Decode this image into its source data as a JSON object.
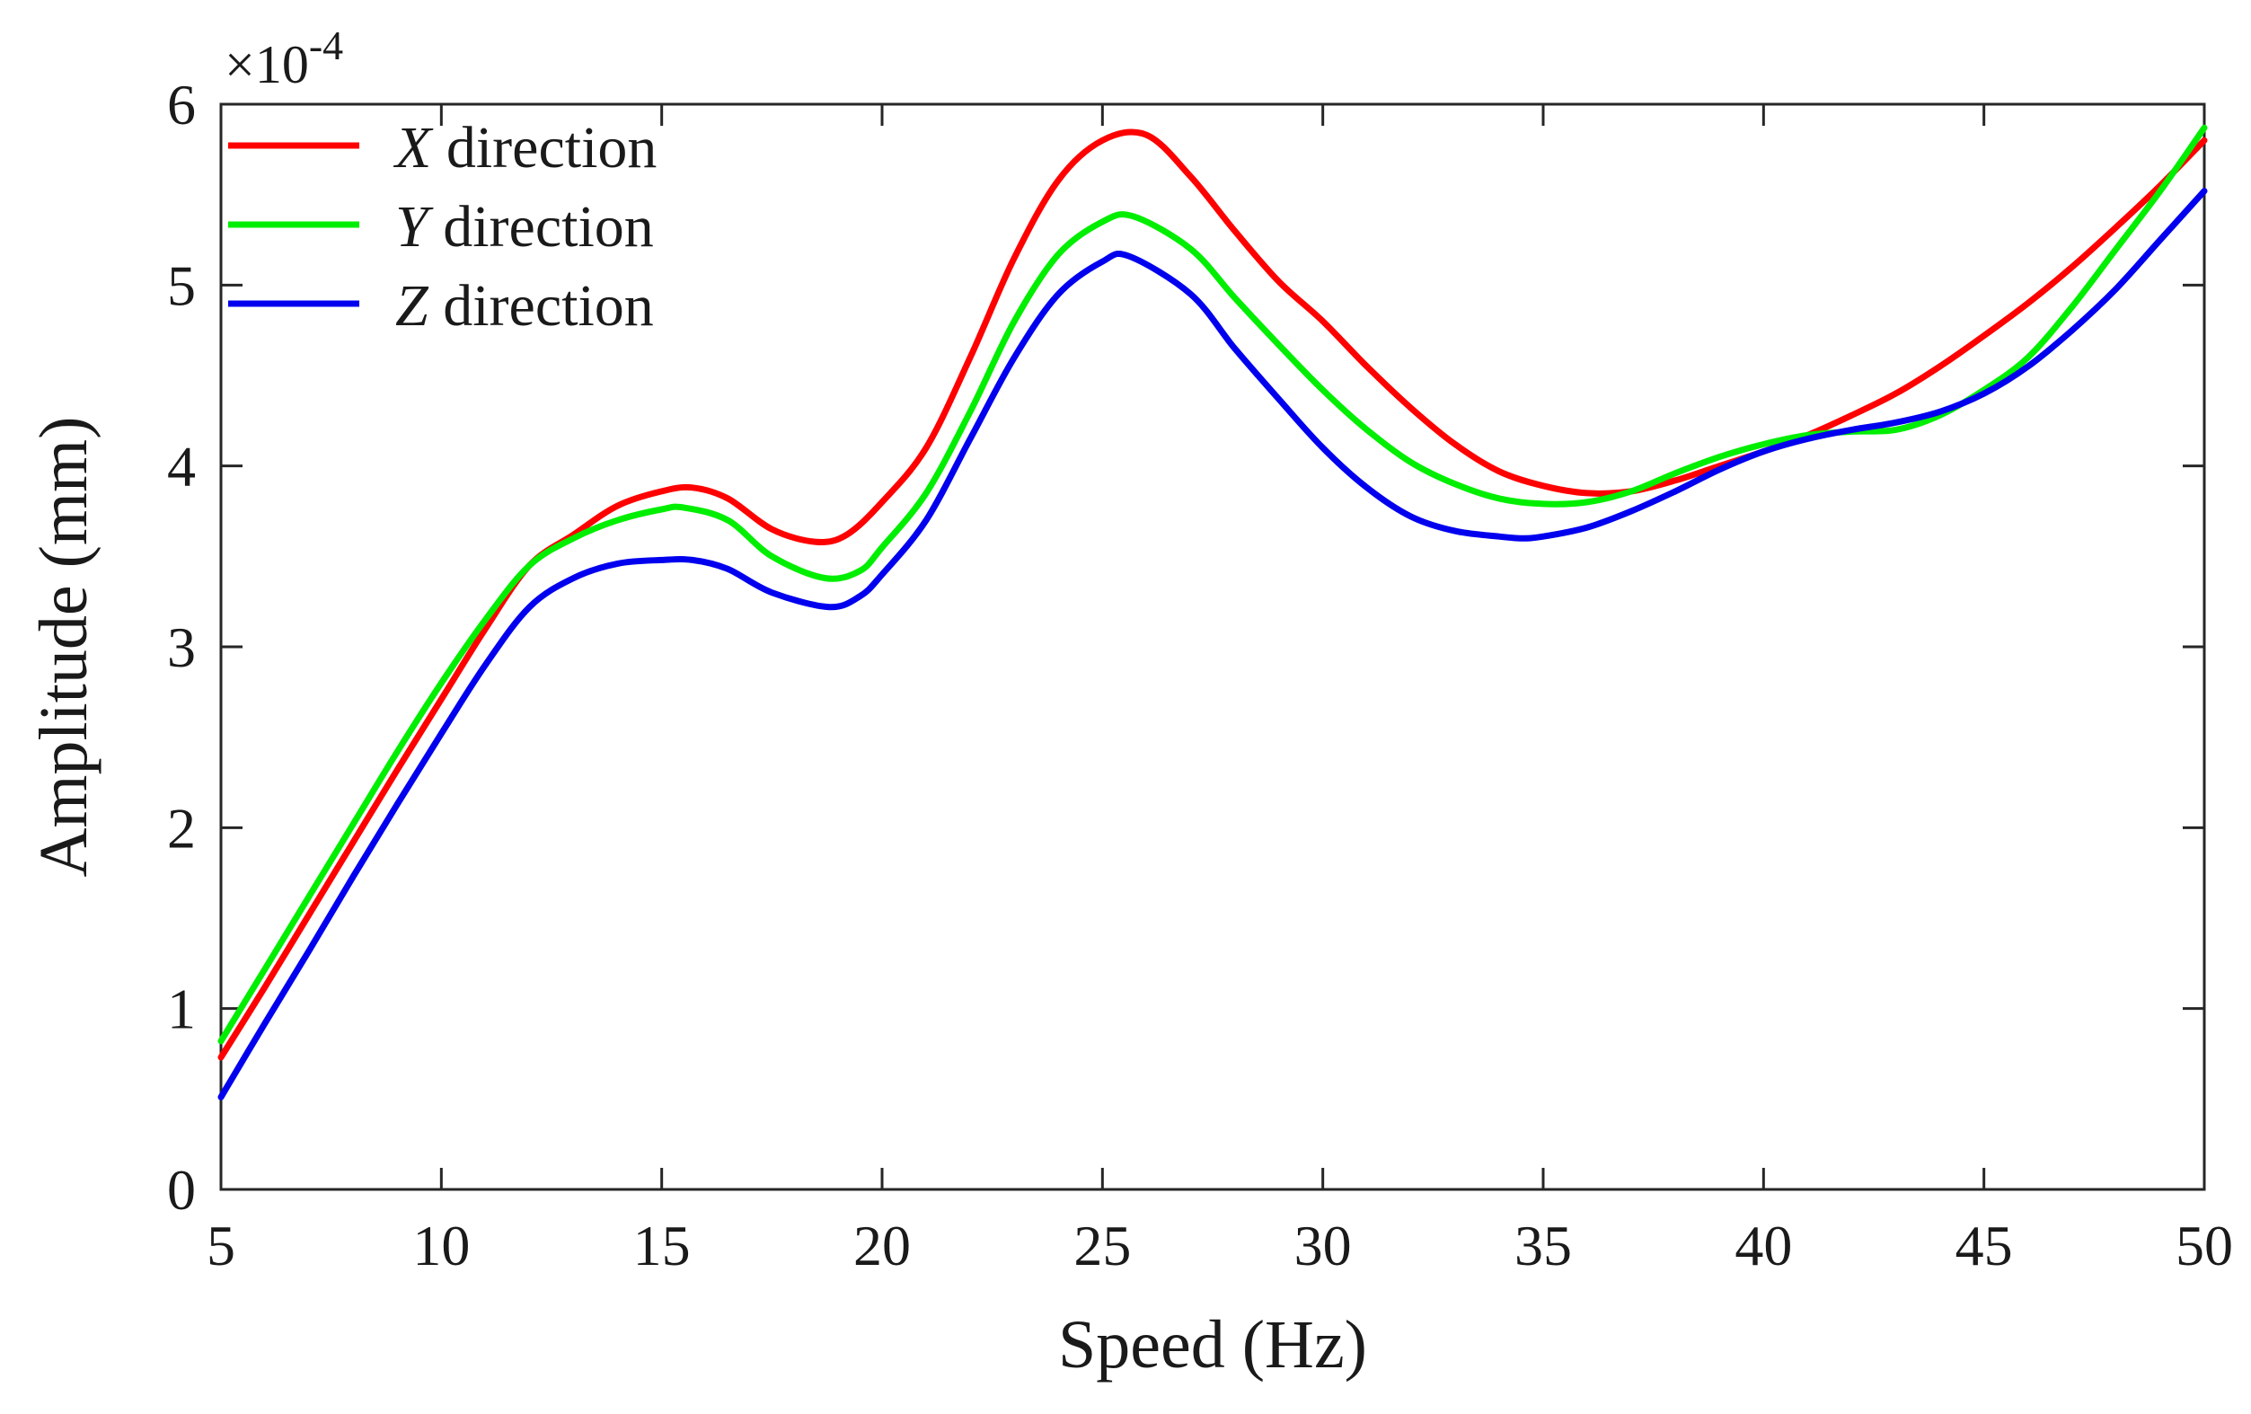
{
  "chart_data": {
    "type": "line",
    "title": "",
    "xlabel": "Speed (Hz)",
    "ylabel": "Amplitude (mm)",
    "y_scale_factor": "×10",
    "y_scale_exponent": "-4",
    "xlim": [
      5,
      50
    ],
    "ylim": [
      0,
      6
    ],
    "xticks": [
      5,
      10,
      15,
      20,
      25,
      30,
      35,
      40,
      45,
      50
    ],
    "xtick_labels": [
      "5",
      "10",
      "15",
      "20",
      "25",
      "30",
      "35",
      "40",
      "45",
      "50"
    ],
    "yticks": [
      0,
      1,
      2,
      3,
      4,
      5,
      6
    ],
    "ytick_labels": [
      "0",
      "1",
      "2",
      "3",
      "4",
      "5",
      "6"
    ],
    "grid": false,
    "legend_position": "top-left",
    "series": [
      {
        "name": "X direction",
        "legend_var": "X",
        "legend_suffix": " direction",
        "color": "#ff0000",
        "x": [
          5,
          6,
          7,
          8,
          9,
          10,
          11,
          12,
          13,
          14,
          15,
          15.7,
          16.5,
          17.5,
          18.5,
          19.2,
          20,
          21,
          22,
          23,
          24,
          25,
          26,
          27,
          28,
          29,
          30,
          31,
          32,
          33,
          34,
          35,
          36,
          37,
          38,
          39,
          40,
          41,
          42,
          43,
          44,
          45,
          46,
          47,
          48,
          49,
          50
        ],
        "values": [
          0.73,
          1.12,
          1.52,
          1.92,
          2.32,
          2.71,
          3.1,
          3.45,
          3.62,
          3.78,
          3.86,
          3.88,
          3.82,
          3.65,
          3.58,
          3.62,
          3.8,
          4.1,
          4.6,
          5.15,
          5.58,
          5.8,
          5.83,
          5.6,
          5.3,
          5.02,
          4.8,
          4.55,
          4.32,
          4.12,
          3.97,
          3.89,
          3.85,
          3.86,
          3.92,
          4.0,
          4.08,
          4.17,
          4.28,
          4.4,
          4.55,
          4.72,
          4.9,
          5.1,
          5.32,
          5.55,
          5.8
        ]
      },
      {
        "name": "Y direction",
        "legend_var": "Y",
        "legend_suffix": " direction",
        "color": "#00ee00",
        "x": [
          5,
          6,
          7,
          8,
          9,
          10,
          11,
          12,
          13,
          14,
          15,
          15.5,
          16.5,
          17.5,
          18.7,
          19.5,
          20,
          21,
          22,
          23,
          24,
          25,
          25.7,
          27,
          28,
          29,
          30,
          31,
          32,
          33,
          34,
          35,
          36,
          37,
          38,
          39,
          40,
          41,
          42,
          43,
          44,
          45,
          46,
          47,
          48,
          49,
          50
        ],
        "values": [
          0.82,
          1.22,
          1.62,
          2.02,
          2.42,
          2.8,
          3.15,
          3.45,
          3.6,
          3.7,
          3.76,
          3.77,
          3.7,
          3.5,
          3.38,
          3.42,
          3.55,
          3.85,
          4.3,
          4.8,
          5.17,
          5.35,
          5.38,
          5.2,
          4.93,
          4.67,
          4.42,
          4.2,
          4.02,
          3.9,
          3.82,
          3.79,
          3.8,
          3.86,
          3.96,
          4.05,
          4.12,
          4.17,
          4.19,
          4.2,
          4.28,
          4.42,
          4.6,
          4.88,
          5.2,
          5.52,
          5.87
        ]
      },
      {
        "name": "Z direction",
        "legend_var": "Z",
        "legend_suffix": " direction",
        "color": "#0000ee",
        "x": [
          5,
          6,
          7,
          8,
          9,
          10,
          11,
          12,
          13,
          14,
          15,
          15.7,
          16.5,
          17.5,
          18.8,
          19.5,
          20,
          21,
          22,
          23,
          24,
          25,
          25.6,
          27,
          28,
          29,
          30,
          31,
          32,
          33,
          34,
          34.5,
          35,
          36,
          37,
          38,
          39,
          40,
          41,
          42,
          43,
          44,
          45,
          46,
          47,
          48,
          49,
          50
        ],
        "values": [
          0.51,
          0.92,
          1.32,
          1.73,
          2.13,
          2.52,
          2.9,
          3.22,
          3.38,
          3.46,
          3.48,
          3.48,
          3.43,
          3.3,
          3.22,
          3.28,
          3.4,
          3.7,
          4.15,
          4.6,
          4.95,
          5.13,
          5.16,
          4.95,
          4.65,
          4.37,
          4.1,
          3.88,
          3.72,
          3.64,
          3.61,
          3.6,
          3.61,
          3.66,
          3.75,
          3.86,
          3.98,
          4.08,
          4.15,
          4.2,
          4.24,
          4.3,
          4.4,
          4.55,
          4.75,
          4.98,
          5.25,
          5.52
        ]
      }
    ]
  }
}
